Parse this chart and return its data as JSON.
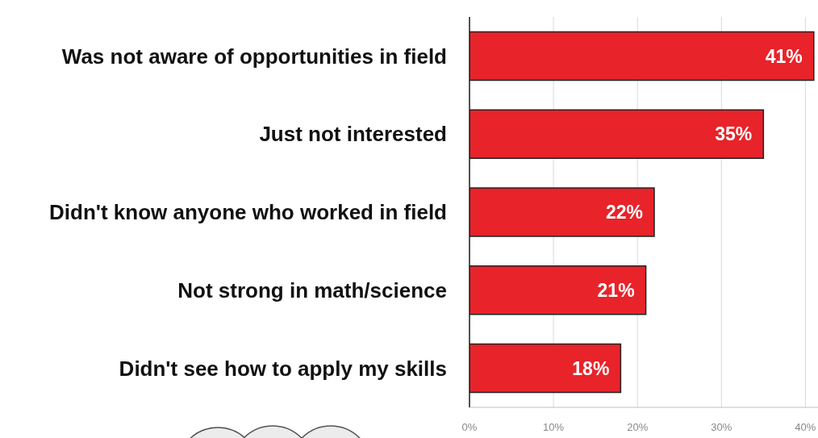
{
  "chart_data": {
    "type": "bar",
    "orientation": "horizontal",
    "categories": [
      "Was not aware of opportunities in field",
      "Just not interested",
      "Didn't know anyone who worked in field",
      "Not strong in math/science",
      "Didn't see how to apply my skills"
    ],
    "values": [
      41,
      35,
      22,
      21,
      18
    ],
    "value_labels": [
      "41%",
      "35%",
      "22%",
      "21%",
      "18%"
    ],
    "color": "#e8232a",
    "xlim": [
      0,
      41.5
    ],
    "xticks": [
      {
        "value": 0,
        "label": "0%"
      },
      {
        "value": 10,
        "label": "10%"
      },
      {
        "value": 20,
        "label": "20%"
      },
      {
        "value": 30,
        "label": "30%"
      },
      {
        "value": 40,
        "label": "40%"
      }
    ],
    "grid": "x"
  }
}
